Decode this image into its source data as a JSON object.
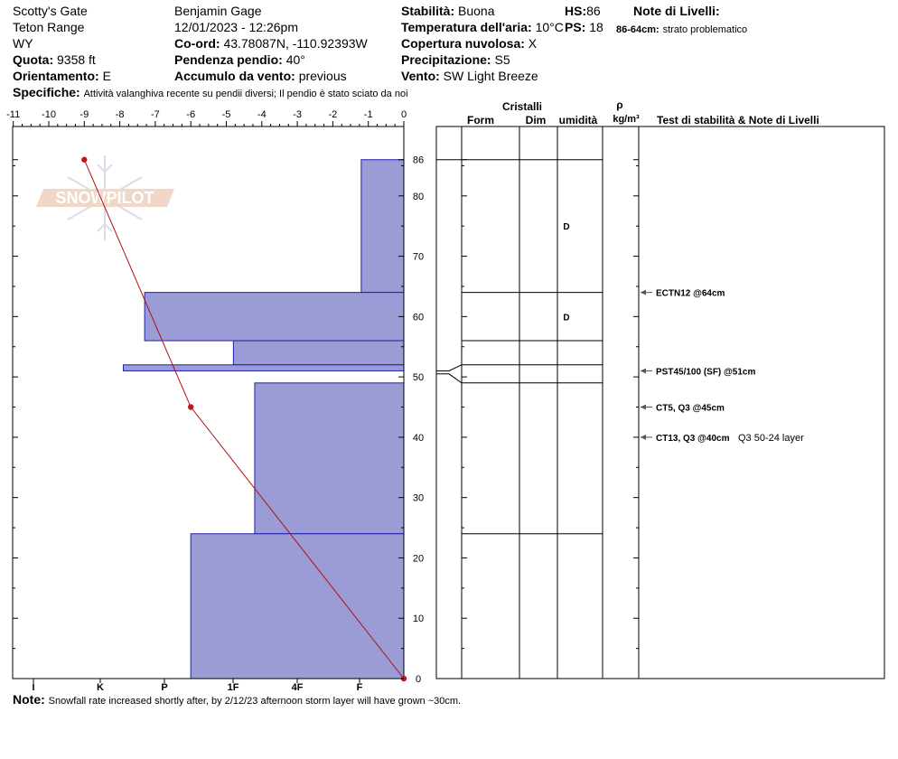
{
  "header": {
    "location": "Scotty's Gate",
    "range": "Teton Range",
    "state": "WY",
    "elevation_label": "Quota:",
    "elevation": "9358 ft",
    "aspect_label": "Orientamento:",
    "aspect": "E",
    "observer": "Benjamin Gage",
    "datetime": "12/01/2023 - 12:26pm",
    "coord_label": "Co-ord:",
    "coord": "43.78087N, -110.92393W",
    "slope_label": "Pendenza pendio:",
    "slope": "40°",
    "wind_loading_label": "Accumulo da vento:",
    "wind_loading": "previous",
    "stability_label": "Stabilità:",
    "stability": "Buona",
    "air_temp_label": "Temperatura dell'aria:",
    "air_temp": "10°C",
    "sky_label": "Copertura nuvolosa:",
    "sky": "X",
    "precip_label": "Precipitazione:",
    "precip": "S5",
    "wind_label": "Vento:",
    "wind": "SW Light Breeze",
    "hs_label": "HS:",
    "hs": "86",
    "ps_label": "PS:",
    "ps": "18",
    "layer_notes_label": "Note di Livelli:",
    "layer_notes_range": "86-64cm:",
    "layer_notes_text": "strato problematico",
    "specifics_label": "Specifiche:",
    "specifics": "Attività valanghiva recente su pendii diversi; Il pendio è stato sciato da noi",
    "note_label": "Note:",
    "note": "Snowfall rate increased shortly after, by 2/12/23 afternoon storm layer will have grown ~30cm."
  },
  "logo": {
    "text": "SNOWPILOT"
  },
  "columns": {
    "cristalli": "Cristalli",
    "form": "Form",
    "dim": "Dim",
    "umidita": "umidità",
    "rho": "ρ",
    "density_unit": "kg/m³",
    "tests_title": "Test di stabilità & Note di Livelli"
  },
  "chart_data": {
    "type": "snow_profile",
    "temp_axis": {
      "ticks": [
        -11,
        -10,
        -9,
        -8,
        -7,
        -6,
        -5,
        -4,
        -3,
        -2,
        -1,
        0
      ],
      "range": [
        -11,
        0
      ]
    },
    "hardness_axis": {
      "labels": [
        "I",
        "K",
        "P",
        "1F",
        "4F",
        "F"
      ]
    },
    "height_axis": {
      "ticks": [
        0,
        10,
        20,
        30,
        40,
        50,
        60,
        70,
        80,
        86
      ],
      "range": [
        0,
        86
      ]
    },
    "temperature_profile": [
      {
        "height": 86,
        "temp": -9
      },
      {
        "height": 45,
        "temp": -6
      },
      {
        "height": 0,
        "temp": 0
      }
    ],
    "layers": [
      {
        "top": 86,
        "bottom": 64,
        "hardness_value": -1.2
      },
      {
        "top": 64,
        "bottom": 56,
        "hardness_value": -7.3
      },
      {
        "top": 56,
        "bottom": 52,
        "hardness_value": -4.8
      },
      {
        "top": 52,
        "bottom": 51,
        "hardness_value": -7.9
      },
      {
        "top": 51,
        "bottom": 49,
        "hardness_value": 0
      },
      {
        "top": 49,
        "bottom": 24,
        "hardness_value": -4.2
      },
      {
        "top": 24,
        "bottom": 0,
        "hardness_value": -6.0
      }
    ],
    "moisture": [
      {
        "height": 75,
        "value": "D"
      },
      {
        "height": 60,
        "value": "D"
      }
    ],
    "tests": [
      {
        "height": 64,
        "text": "ECTN12 @64cm",
        "note": ""
      },
      {
        "height": 51,
        "text": "PST45/100 (SF) @51cm",
        "note": ""
      },
      {
        "height": 45,
        "text": "CT5, Q3 @45cm",
        "note": ""
      },
      {
        "height": 40,
        "text": "CT13, Q3 @40cm",
        "note": "Q3 50-24 layer"
      }
    ]
  }
}
